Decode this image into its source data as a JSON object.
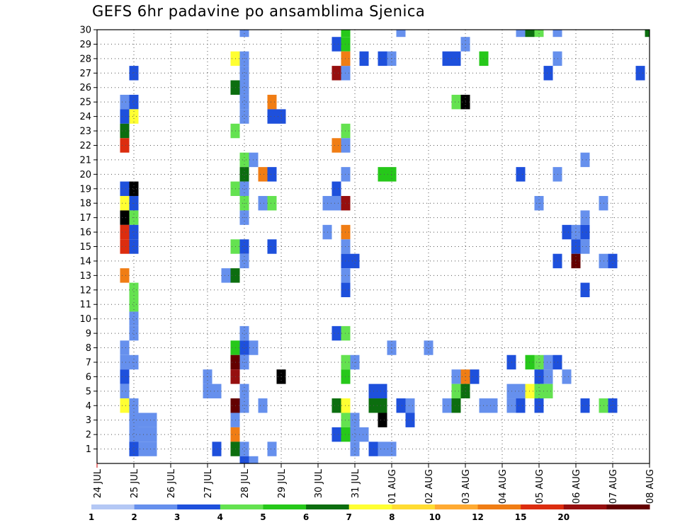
{
  "chart_data": {
    "type": "heatmap",
    "title": "GEFS 6hr padavine po ansamblima Sjenica",
    "xlabel": "",
    "ylabel": "",
    "x_tick_labels": [
      "24 JUL",
      "25 JUL",
      "26 JUL",
      "27 JUL",
      "28 JUL",
      "29 JUL",
      "30 JUL",
      "31 JUL",
      "01 AUG",
      "02 AUG",
      "03 AUG",
      "04 AUG",
      "05 AUG",
      "06 AUG",
      "07 AUG",
      "08 AUG"
    ],
    "y_tick_labels": [
      "1",
      "2",
      "3",
      "4",
      "5",
      "6",
      "7",
      "8",
      "9",
      "10",
      "11",
      "12",
      "13",
      "14",
      "15",
      "16",
      "17",
      "18",
      "19",
      "20",
      "21",
      "22",
      "23",
      "24",
      "25",
      "26",
      "27",
      "28",
      "29",
      "30"
    ],
    "x_step_hours": 6,
    "x_steps_total": 60,
    "ylim": [
      0,
      30
    ],
    "grid": true,
    "colorbar": {
      "ticks": [
        "1",
        "2",
        "3",
        "4",
        "5",
        "6",
        "7",
        "8",
        "10",
        "12",
        "15",
        "20"
      ],
      "colors": [
        "#b4c8f5",
        "#6690ed",
        "#1e50dc",
        "#64e250",
        "#26c81a",
        "#0c6e0f",
        "#ffff32",
        "#ffdc32",
        "#ffaa32",
        "#f07d14",
        "#dc2d0f",
        "#960f0f",
        "#640000"
      ]
    },
    "cells": [
      [
        4,
        1,
        1
      ],
      [
        5,
        1,
        1
      ],
      [
        6,
        1,
        1
      ],
      [
        4,
        2,
        1
      ],
      [
        5,
        2,
        1
      ],
      [
        6,
        2,
        1
      ],
      [
        4,
        3,
        1
      ],
      [
        5,
        3,
        1
      ],
      [
        6,
        3,
        1
      ],
      [
        3,
        25,
        1
      ],
      [
        4,
        25,
        2
      ],
      [
        3,
        24,
        2
      ],
      [
        4,
        24,
        6
      ],
      [
        3,
        23,
        5
      ],
      [
        3,
        22,
        10
      ],
      [
        4,
        27,
        2
      ],
      [
        3,
        19,
        2
      ],
      [
        4,
        19,
        13
      ],
      [
        3,
        18,
        6
      ],
      [
        4,
        18,
        2
      ],
      [
        3,
        17,
        13
      ],
      [
        4,
        17,
        3
      ],
      [
        3,
        16,
        10
      ],
      [
        4,
        16,
        2
      ],
      [
        3,
        15,
        10
      ],
      [
        4,
        15,
        2
      ],
      [
        3,
        13,
        9
      ],
      [
        4,
        12,
        3
      ],
      [
        4,
        11,
        3
      ],
      [
        4,
        10,
        1
      ],
      [
        4,
        9,
        1
      ],
      [
        3,
        8,
        1
      ],
      [
        3,
        7,
        1
      ],
      [
        4,
        7,
        1
      ],
      [
        3,
        6,
        2
      ],
      [
        3,
        5,
        1
      ],
      [
        3,
        4,
        6
      ],
      [
        4,
        4,
        1
      ],
      [
        4,
        3,
        1
      ],
      [
        4,
        1,
        2
      ],
      [
        12,
        6,
        1
      ],
      [
        12,
        5,
        1
      ],
      [
        13,
        5,
        1
      ],
      [
        13,
        1,
        2
      ],
      [
        14,
        13,
        1
      ],
      [
        15,
        28,
        6
      ],
      [
        16,
        28,
        1
      ],
      [
        16,
        30,
        1
      ],
      [
        16,
        27,
        1
      ],
      [
        16,
        26,
        1
      ],
      [
        15,
        26,
        5
      ],
      [
        16,
        25,
        1
      ],
      [
        16,
        24,
        1
      ],
      [
        15,
        23,
        3
      ],
      [
        16,
        21,
        3
      ],
      [
        17,
        21,
        1
      ],
      [
        16,
        20,
        5
      ],
      [
        16,
        19,
        1
      ],
      [
        15,
        19,
        3
      ],
      [
        16,
        18,
        3
      ],
      [
        16,
        17,
        1
      ],
      [
        15,
        15,
        3
      ],
      [
        16,
        15,
        2
      ],
      [
        16,
        14,
        1
      ],
      [
        15,
        13,
        5
      ],
      [
        16,
        9,
        1
      ],
      [
        15,
        8,
        4
      ],
      [
        16,
        8,
        2
      ],
      [
        17,
        8,
        1
      ],
      [
        15,
        7,
        12
      ],
      [
        16,
        7,
        1
      ],
      [
        15,
        6,
        11
      ],
      [
        16,
        5,
        1
      ],
      [
        15,
        4,
        12
      ],
      [
        16,
        4,
        1
      ],
      [
        18,
        4,
        1
      ],
      [
        15,
        3,
        1
      ],
      [
        15,
        2,
        9
      ],
      [
        15,
        1,
        5
      ],
      [
        16,
        1,
        1
      ],
      [
        16,
        0,
        2
      ],
      [
        17,
        0,
        1
      ],
      [
        19,
        25,
        9
      ],
      [
        19,
        24,
        2
      ],
      [
        20,
        24,
        2
      ],
      [
        18,
        20,
        9
      ],
      [
        19,
        20,
        2
      ],
      [
        18,
        18,
        1
      ],
      [
        19,
        18,
        3
      ],
      [
        19,
        15,
        2
      ],
      [
        20,
        6,
        13
      ],
      [
        19,
        1,
        1
      ],
      [
        26,
        27,
        11
      ],
      [
        27,
        27,
        1
      ],
      [
        26,
        29,
        2
      ],
      [
        27,
        30,
        4
      ],
      [
        27,
        29,
        4
      ],
      [
        27,
        28,
        9
      ],
      [
        27,
        23,
        3
      ],
      [
        26,
        22,
        9
      ],
      [
        27,
        22,
        1
      ],
      [
        27,
        20,
        1
      ],
      [
        26,
        19,
        2
      ],
      [
        25,
        18,
        1
      ],
      [
        26,
        18,
        1
      ],
      [
        27,
        18,
        11
      ],
      [
        25,
        16,
        1
      ],
      [
        27,
        16,
        9
      ],
      [
        27,
        15,
        1
      ],
      [
        27,
        14,
        2
      ],
      [
        28,
        14,
        2
      ],
      [
        27,
        13,
        1
      ],
      [
        27,
        12,
        2
      ],
      [
        26,
        9,
        2
      ],
      [
        27,
        9,
        3
      ],
      [
        27,
        7,
        3
      ],
      [
        28,
        7,
        1
      ],
      [
        27,
        6,
        4
      ],
      [
        26,
        4,
        5
      ],
      [
        27,
        4,
        6
      ],
      [
        27,
        3,
        3
      ],
      [
        28,
        3,
        1
      ],
      [
        26,
        2,
        2
      ],
      [
        27,
        2,
        4
      ],
      [
        28,
        2,
        1
      ],
      [
        29,
        2,
        1
      ],
      [
        28,
        1,
        1
      ],
      [
        31,
        20,
        4
      ],
      [
        32,
        20,
        4
      ],
      [
        30,
        5,
        2
      ],
      [
        31,
        5,
        2
      ],
      [
        30,
        4,
        5
      ],
      [
        31,
        4,
        5
      ],
      [
        31,
        3,
        13
      ],
      [
        30,
        1,
        2
      ],
      [
        31,
        1,
        1
      ],
      [
        32,
        1,
        1
      ],
      [
        29,
        28,
        2
      ],
      [
        31,
        28,
        2
      ],
      [
        32,
        28,
        1
      ],
      [
        33,
        30,
        1
      ],
      [
        33,
        4,
        2
      ],
      [
        34,
        4,
        1
      ],
      [
        34,
        3,
        2
      ],
      [
        32,
        8,
        1
      ],
      [
        36,
        8,
        1
      ],
      [
        38,
        28,
        2
      ],
      [
        39,
        28,
        2
      ],
      [
        39,
        25,
        3
      ],
      [
        40,
        25,
        13
      ],
      [
        40,
        29,
        1
      ],
      [
        42,
        28,
        4
      ],
      [
        39,
        6,
        1
      ],
      [
        40,
        6,
        9
      ],
      [
        41,
        6,
        2
      ],
      [
        39,
        5,
        3
      ],
      [
        40,
        5,
        5
      ],
      [
        38,
        4,
        1
      ],
      [
        39,
        4,
        5
      ],
      [
        42,
        4,
        1
      ],
      [
        43,
        4,
        1
      ],
      [
        46,
        30,
        1
      ],
      [
        47,
        30,
        5
      ],
      [
        48,
        30,
        3
      ],
      [
        50,
        30,
        1
      ],
      [
        50,
        28,
        1
      ],
      [
        49,
        27,
        2
      ],
      [
        46,
        20,
        2
      ],
      [
        50,
        20,
        1
      ],
      [
        48,
        18,
        1
      ],
      [
        55,
        18,
        1
      ],
      [
        53,
        21,
        1
      ],
      [
        53,
        17,
        1
      ],
      [
        51,
        16,
        2
      ],
      [
        52,
        16,
        1
      ],
      [
        53,
        16,
        2
      ],
      [
        52,
        15,
        2
      ],
      [
        53,
        15,
        1
      ],
      [
        50,
        14,
        2
      ],
      [
        52,
        14,
        12
      ],
      [
        53,
        12,
        2
      ],
      [
        55,
        14,
        1
      ],
      [
        56,
        14,
        2
      ],
      [
        45,
        7,
        2
      ],
      [
        47,
        7,
        4
      ],
      [
        48,
        7,
        3
      ],
      [
        49,
        7,
        1
      ],
      [
        50,
        7,
        2
      ],
      [
        48,
        6,
        2
      ],
      [
        49,
        6,
        1
      ],
      [
        51,
        6,
        1
      ],
      [
        45,
        5,
        1
      ],
      [
        46,
        5,
        1
      ],
      [
        47,
        5,
        6
      ],
      [
        48,
        5,
        3
      ],
      [
        49,
        5,
        3
      ],
      [
        45,
        4,
        1
      ],
      [
        46,
        4,
        2
      ],
      [
        48,
        4,
        2
      ],
      [
        53,
        4,
        2
      ],
      [
        55,
        4,
        3
      ],
      [
        56,
        4,
        2
      ],
      [
        60,
        30,
        5
      ],
      [
        59,
        27,
        2
      ]
    ]
  }
}
